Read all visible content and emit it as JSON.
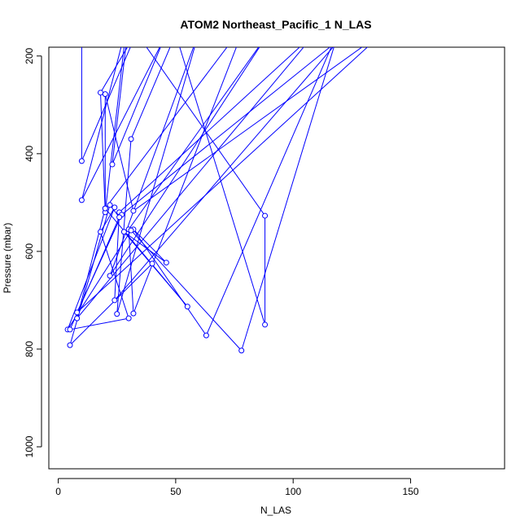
{
  "chart_data": {
    "type": "line",
    "title": "ATOM2 Northeast_Pacific_1 N_LAS",
    "xlabel": "N_LAS",
    "ylabel": "Pressure (mbar)",
    "xlim": [
      -4,
      190
    ],
    "ylim": [
      1045,
      182
    ],
    "y_reversed": true,
    "x_ticks": [
      0,
      50,
      100,
      150
    ],
    "y_ticks": [
      200,
      400,
      600,
      800,
      1000
    ],
    "colors": {
      "series": "#0000ff",
      "axis": "#000000"
    },
    "series": [
      {
        "points": [
          [
            10,
            150
          ],
          [
            10,
            415
          ],
          [
            34,
            145
          ],
          [
            18,
            275
          ],
          [
            20,
            520
          ],
          [
            29,
            140
          ],
          [
            10,
            495
          ],
          [
            45,
            165
          ],
          [
            23,
            422
          ],
          [
            30,
            130
          ],
          [
            88,
            527
          ],
          [
            88,
            750
          ],
          [
            50,
            155
          ],
          [
            31,
            370
          ],
          [
            25,
            728
          ],
          [
            60,
            150
          ],
          [
            22,
            650
          ],
          [
            90,
            150
          ],
          [
            30,
            555
          ],
          [
            32,
            727
          ],
          [
            80,
            130
          ],
          [
            20,
            512
          ],
          [
            8,
            737
          ],
          [
            110,
            150
          ],
          [
            26,
            520
          ],
          [
            24,
            700
          ],
          [
            120,
            165
          ],
          [
            27,
            525
          ],
          [
            8,
            725
          ],
          [
            140,
            145
          ],
          [
            32,
            517
          ],
          [
            20,
            278
          ],
          [
            20,
            512
          ],
          [
            55,
            713
          ],
          [
            28,
            560
          ],
          [
            46,
            623
          ],
          [
            32,
            555
          ],
          [
            63,
            772
          ],
          [
            120,
            140
          ],
          [
            78,
            803
          ],
          [
            31,
            557
          ],
          [
            4,
            760
          ],
          [
            24,
            510
          ],
          [
            18,
            560
          ],
          [
            30,
            737
          ],
          [
            5,
            760
          ],
          [
            26,
            530
          ],
          [
            22,
            505
          ],
          [
            5,
            792
          ],
          [
            40,
            625
          ]
        ]
      }
    ]
  }
}
